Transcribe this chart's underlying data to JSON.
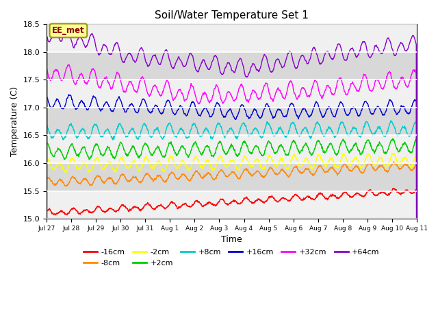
{
  "title": "Soil/Water Temperature Set 1",
  "xlabel": "Time",
  "ylabel": "Temperature (C)",
  "ylim": [
    15.0,
    18.5
  ],
  "xlim": [
    0,
    360
  ],
  "background_color": "#ffffff",
  "plot_bg_color": "#e8e8e8",
  "series_order": [
    "-16cm",
    "-8cm",
    "-2cm",
    "+2cm",
    "+8cm",
    "+16cm",
    "+32cm",
    "+64cm"
  ],
  "colors": {
    "-16cm": "#ff0000",
    "-8cm": "#ff8800",
    "-2cm": "#ffff00",
    "+2cm": "#00cc00",
    "+8cm": "#00cccc",
    "+16cm": "#0000cc",
    "+32cm": "#ff00ff",
    "+64cm": "#8800cc"
  },
  "tick_labels": [
    "Jul 27",
    "Jul 28",
    "Jul 29",
    "Jul 30",
    "Jul 31",
    "Aug 1",
    "Aug 2",
    "Aug 3",
    "Aug 4",
    "Aug 5",
    "Aug 6",
    "Aug 7",
    "Aug 8",
    "Aug 9",
    "Aug 10",
    "Aug 11"
  ],
  "tick_positions": [
    0,
    24,
    48,
    72,
    96,
    120,
    144,
    168,
    192,
    216,
    240,
    264,
    288,
    312,
    336,
    360
  ],
  "watermark": "EE_met",
  "n_points": 2160
}
